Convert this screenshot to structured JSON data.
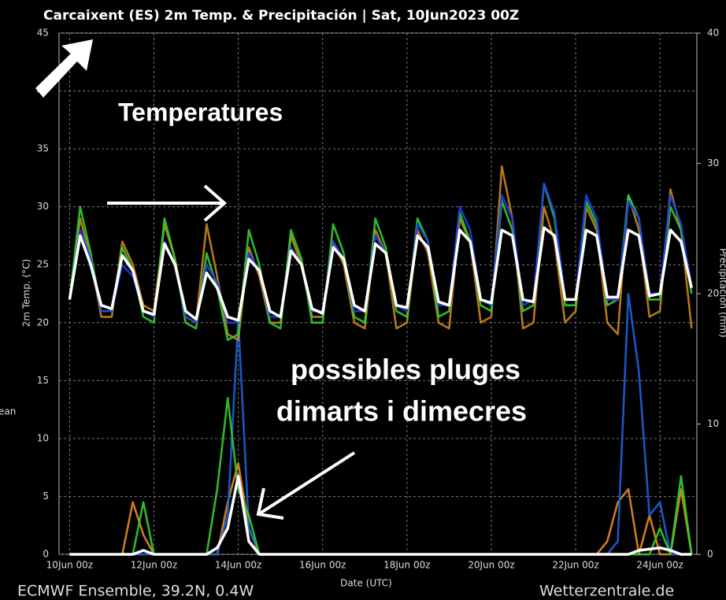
{
  "chart_data": {
    "type": "line",
    "title": "Carcaixent  (ES)  2m Temp. & Precipitación | Sat, 10Jun2023 00Z",
    "x_label": "Date (UTC)",
    "y_label": "2m Temp. (°C)",
    "y2_label": "Precipitación (mm)",
    "legend_fragment": "ean",
    "source_left": "ECMWF Ensemble, 39.2N, 0.4W",
    "source_right": "Wetterzentrale.de",
    "annotations": [
      "Temperatures",
      "possibles pluges",
      "dimarts i dimecres"
    ],
    "grid": true,
    "xlim": [
      -6,
      357
    ],
    "ylim": [
      0,
      45
    ],
    "y2lim": [
      0,
      40
    ],
    "xticks": [
      {
        "value": 0,
        "label": "10Jun 00z"
      },
      {
        "value": 48,
        "label": "12Jun 00z"
      },
      {
        "value": 96,
        "label": "14Jun 00z"
      },
      {
        "value": 144,
        "label": "16Jun 00z"
      },
      {
        "value": 192,
        "label": "18Jun 00z"
      },
      {
        "value": 240,
        "label": "20Jun 00z"
      },
      {
        "value": 288,
        "label": "22Jun 00z"
      },
      {
        "value": 336,
        "label": "24Jun 00z"
      }
    ],
    "yticks": [
      0,
      5,
      10,
      15,
      20,
      25,
      30,
      35,
      40,
      45
    ],
    "y2ticks": [
      0,
      10,
      20,
      30,
      40
    ],
    "x": [
      0,
      6,
      12,
      18,
      24,
      30,
      36,
      42,
      48,
      54,
      60,
      66,
      72,
      78,
      84,
      90,
      96,
      102,
      108,
      114,
      120,
      126,
      132,
      138,
      144,
      150,
      156,
      162,
      168,
      174,
      180,
      186,
      192,
      198,
      204,
      210,
      216,
      222,
      228,
      234,
      240,
      246,
      252,
      258,
      264,
      270,
      276,
      282,
      288,
      294,
      300,
      306,
      312,
      318,
      324,
      330,
      336,
      342,
      348,
      354
    ],
    "series": [
      {
        "color": "#e08a1e",
        "axis": "y2",
        "values": [
          0,
          0,
          0,
          0,
          0,
          0,
          4,
          1.5,
          0,
          0,
          0,
          0,
          0,
          0,
          0,
          4,
          7,
          2,
          0,
          0,
          0,
          0,
          0,
          0,
          0,
          0,
          0,
          0,
          0,
          0,
          0,
          0,
          0,
          0,
          0,
          0,
          0,
          0,
          0,
          0,
          0,
          0,
          0,
          0,
          0,
          0,
          0,
          0,
          0,
          0,
          0,
          1,
          4,
          5,
          0,
          3,
          0,
          0,
          5,
          0
        ]
      },
      {
        "color": "#1f5fd8",
        "axis": "y2",
        "values": [
          0,
          0,
          0,
          0,
          0,
          0,
          0,
          0,
          0,
          0,
          0,
          0,
          0,
          0,
          0,
          3,
          18,
          2,
          0,
          0,
          0,
          0,
          0,
          0,
          0,
          0,
          0,
          0,
          0,
          0,
          0,
          0,
          0,
          0,
          0,
          0,
          0,
          0,
          0,
          0,
          0,
          0,
          0,
          0,
          0,
          0,
          0,
          0,
          0,
          0,
          0,
          0,
          1,
          20,
          14,
          3,
          4,
          0,
          0,
          0
        ]
      },
      {
        "color": "#33cc33",
        "axis": "y2",
        "values": [
          0,
          0,
          0,
          0,
          0,
          0,
          0,
          4,
          0,
          0,
          0,
          0,
          0,
          0,
          5,
          12,
          5,
          3,
          0,
          0,
          0,
          0,
          0,
          0,
          0,
          0,
          0,
          0,
          0,
          0,
          0,
          0,
          0,
          0,
          0,
          0,
          0,
          0,
          0,
          0,
          0,
          0,
          0,
          0,
          0,
          0,
          0,
          0,
          0,
          0,
          0,
          0,
          0,
          0,
          0,
          0,
          2,
          0,
          6,
          0
        ]
      },
      {
        "color": "#ffffff",
        "axis": "y2",
        "values": [
          0,
          0,
          0,
          0,
          0,
          0,
          0,
          0.3,
          0,
          0,
          0,
          0,
          0,
          0,
          0.5,
          2,
          6,
          1,
          0,
          0,
          0,
          0,
          0,
          0,
          0,
          0,
          0,
          0,
          0,
          0,
          0,
          0,
          0,
          0,
          0,
          0,
          0,
          0,
          0,
          0,
          0,
          0,
          0,
          0,
          0,
          0,
          0,
          0,
          0,
          0,
          0,
          0,
          0,
          0,
          0.3,
          0.4,
          0.5,
          0.3,
          0,
          0
        ]
      },
      {
        "color": "#c8841c",
        "values": [
          22,
          29,
          25.5,
          20.5,
          20.5,
          27,
          25,
          21.5,
          21,
          28.5,
          25.5,
          20.5,
          20,
          28.5,
          24,
          19,
          18.5,
          26.5,
          24,
          20,
          20,
          27.5,
          25,
          20.5,
          20.5,
          27,
          25,
          20,
          19.5,
          28,
          26,
          19.5,
          20,
          28,
          26,
          20,
          19.5,
          29,
          27,
          20,
          20.5,
          33.5,
          29,
          19.5,
          20,
          30,
          27,
          20,
          21,
          30,
          28,
          20,
          19,
          31,
          28,
          20.5,
          21,
          31.5,
          28,
          19.5
        ]
      },
      {
        "color": "#33cc33",
        "values": [
          22,
          30,
          26,
          21,
          21,
          26.5,
          24.5,
          20.5,
          20,
          29,
          25.5,
          20,
          19.5,
          26,
          23,
          18.5,
          19,
          28,
          25,
          20,
          19.5,
          28,
          25.5,
          20,
          20,
          28.5,
          26,
          20.5,
          20,
          29,
          26.5,
          21,
          20.5,
          29,
          27,
          20.5,
          21,
          29.5,
          27,
          21.5,
          21,
          30.5,
          28,
          21,
          21.5,
          32,
          29,
          21.5,
          21.5,
          30.5,
          28.5,
          21.5,
          22,
          31,
          29,
          22,
          22,
          30,
          28,
          22.5
        ]
      },
      {
        "color": "#1f3fe0",
        "values": [
          22,
          28,
          25.5,
          21,
          21,
          25,
          24,
          21,
          20.5,
          27,
          25,
          20.5,
          20,
          25,
          23.5,
          20,
          20,
          26,
          24.5,
          20.5,
          20.5,
          26.5,
          25,
          21,
          21,
          27,
          25.5,
          21,
          21,
          27.5,
          26,
          21.5,
          21,
          28.5,
          27,
          21.5,
          21.5,
          30,
          28,
          22,
          21.5,
          31,
          29,
          21.5,
          22,
          32,
          29.5,
          22,
          22,
          31,
          29,
          22,
          22,
          30.5,
          29,
          22.5,
          22.5,
          31,
          28.5,
          23
        ]
      },
      {
        "color": "#ffffff",
        "values": [
          22,
          27.5,
          25,
          21.5,
          21.2,
          25.8,
          24.5,
          21,
          20.7,
          26.8,
          25,
          21,
          20.3,
          24.3,
          23,
          20.5,
          20.2,
          25.5,
          24.5,
          21,
          20.5,
          26.2,
          25,
          21.2,
          20.8,
          26.5,
          25.5,
          21.5,
          21,
          26.8,
          26,
          21.5,
          21.3,
          27.5,
          26.5,
          21.8,
          21.5,
          28,
          27,
          22,
          21.7,
          28,
          27.5,
          22,
          21.8,
          28.2,
          27.5,
          22,
          22,
          28,
          27.5,
          22.2,
          22.2,
          28,
          27.5,
          22.3,
          22.5,
          28,
          27,
          23
        ]
      }
    ]
  }
}
